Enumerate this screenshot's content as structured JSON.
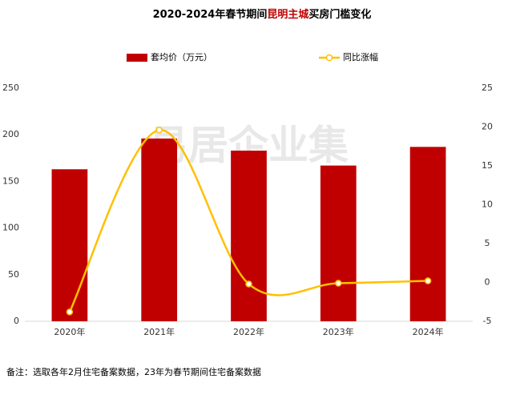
{
  "chart_data": {
    "type": "bar-line",
    "title_parts": [
      {
        "text": "2020-2024年春节期间",
        "color": "#000000"
      },
      {
        "text": "昆明主城",
        "color": "#c00000"
      },
      {
        "text": "买房门槛变化",
        "color": "#000000"
      }
    ],
    "categories": [
      "2020年",
      "2021年",
      "2022年",
      "2023年",
      "2024年"
    ],
    "series": [
      {
        "name": "套均价（万元）",
        "type": "bar",
        "color": "#c00000",
        "values": [
          163,
          196,
          183,
          167,
          187
        ]
      },
      {
        "name": "同比涨幅",
        "type": "line",
        "axis": "y2",
        "color": "#ffc000",
        "values": [
          -3.8,
          19.6,
          -0.2,
          -0.1,
          0.2
        ]
      }
    ],
    "ylim": [
      0,
      250
    ],
    "yticks": [
      0,
      50,
      100,
      150,
      200,
      250
    ],
    "y2lim": [
      -5,
      25
    ],
    "y2ticks": [
      -5,
      0,
      5,
      10,
      15,
      20,
      25
    ],
    "legend": "top",
    "watermark": "易居企业集",
    "footnote": "备注：选取各年2月住宅备案数据，23年为春节期间住宅备案数据"
  }
}
